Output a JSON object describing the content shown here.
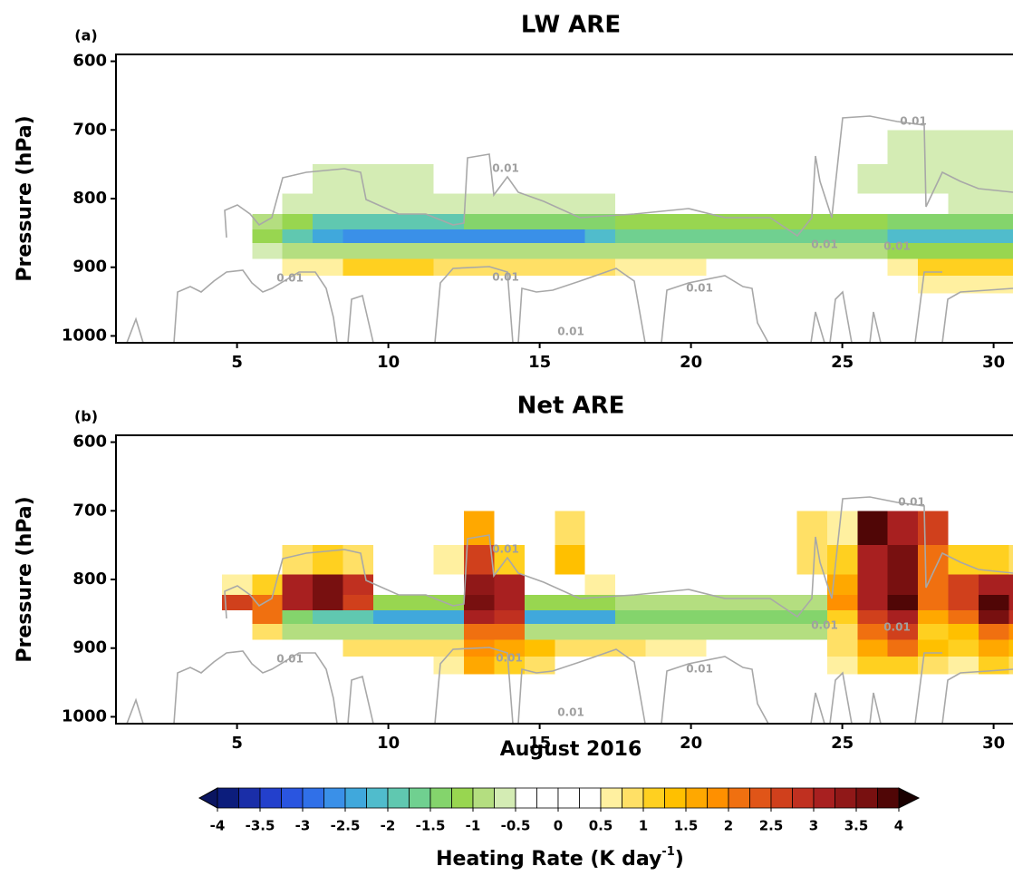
{
  "chart_data": [
    {
      "type": "contour",
      "title": "LW ARE",
      "panel_label": "(a)",
      "ylabel": "Pressure (hPa)",
      "contour_label": "0.01",
      "xlim": [
        1,
        31
      ],
      "xticks": [
        5,
        10,
        15,
        20,
        25,
        30
      ],
      "ylim": [
        1010,
        590
      ],
      "yticks": [
        600,
        700,
        800,
        900,
        1000
      ],
      "x": [
        1,
        2,
        3,
        4,
        5,
        6,
        7,
        8,
        9,
        10,
        11,
        12,
        13,
        14,
        15,
        16,
        17,
        18,
        19,
        20,
        21,
        22,
        23,
        24,
        25,
        26,
        27,
        28,
        29,
        30,
        31
      ],
      "y": [
        725,
        775,
        810,
        835,
        855,
        875,
        900,
        925
      ],
      "z": [
        [
          0,
          0,
          0,
          0,
          0,
          0,
          0,
          0,
          0,
          0,
          0,
          0,
          0,
          0,
          0,
          0,
          0,
          0,
          0,
          0,
          0,
          0,
          0,
          0,
          0,
          0,
          -0.6,
          -0.6,
          -0.6,
          -0.6,
          -0.6
        ],
        [
          0,
          0,
          0,
          0,
          0,
          0,
          0,
          -0.6,
          -0.6,
          -0.6,
          -0.6,
          0,
          0,
          0,
          0,
          0,
          0,
          0,
          0,
          0,
          0,
          0,
          0,
          0,
          0,
          -0.7,
          -0.7,
          -0.7,
          -0.7,
          -0.7,
          -0.7
        ],
        [
          0,
          0,
          0,
          0,
          0,
          0,
          -0.7,
          -0.7,
          -0.7,
          -0.7,
          -0.7,
          -0.7,
          -0.7,
          -0.7,
          -0.7,
          -0.7,
          -0.7,
          0,
          0,
          0,
          0,
          0,
          0,
          0,
          0,
          0,
          0,
          0,
          -0.7,
          -0.7,
          -0.7
        ],
        [
          0,
          0,
          0,
          0,
          0,
          -0.8,
          -1.2,
          -1.8,
          -1.8,
          -1.8,
          -1.8,
          -1.8,
          -1.4,
          -1.4,
          -1.4,
          -1.4,
          -1.4,
          -1.2,
          -1.2,
          -1.2,
          -1.2,
          -1.2,
          -1.2,
          -1.2,
          -1.2,
          -1.2,
          -1.4,
          -1.4,
          -1.4,
          -1.4,
          -1.4
        ],
        [
          0,
          0,
          0,
          0,
          0,
          -1.2,
          -1.8,
          -2.3,
          -2.7,
          -2.7,
          -2.7,
          -2.7,
          -2.7,
          -2.7,
          -2.7,
          -2.7,
          -2.2,
          -1.6,
          -1.6,
          -1.6,
          -1.6,
          -1.6,
          -1.6,
          -1.6,
          -1.6,
          -1.6,
          -2.1,
          -2.1,
          -2.1,
          -2.1,
          -2.1
        ],
        [
          0,
          0,
          0,
          0,
          0,
          -0.7,
          -1,
          -1,
          -1,
          -1,
          -1,
          -1,
          -1,
          -1,
          -1,
          -1,
          -1,
          -1,
          -1,
          -1,
          -1,
          -1,
          -1,
          -1,
          -1,
          -1,
          -1.2,
          -1.2,
          -1.2,
          -1.2,
          -1.2
        ],
        [
          0,
          0,
          0,
          0,
          0,
          0,
          0.6,
          0.7,
          1.1,
          1.1,
          1.1,
          0.8,
          0.9,
          0.9,
          0.9,
          0.9,
          0.9,
          0.7,
          0.7,
          0.7,
          0,
          0,
          0,
          0,
          0,
          0,
          0.6,
          1.2,
          1.2,
          1.2,
          1.2
        ],
        [
          0,
          0,
          0,
          0,
          0,
          0,
          0,
          0,
          0,
          0,
          0,
          0,
          0,
          0,
          0,
          0,
          0,
          0,
          0,
          0,
          0,
          0,
          0,
          0,
          0,
          0,
          0,
          0.7,
          0.7,
          0.7,
          0.7
        ]
      ]
    },
    {
      "type": "contour",
      "title": "Net ARE",
      "panel_label": "(b)",
      "ylabel": "Pressure (hPa)",
      "xlabel": "August 2016",
      "contour_label": "0.01",
      "xlim": [
        1,
        31
      ],
      "xticks": [
        5,
        10,
        15,
        20,
        25,
        30
      ],
      "ylim": [
        1010,
        590
      ],
      "yticks": [
        600,
        700,
        800,
        900,
        1000
      ],
      "x": [
        1,
        2,
        3,
        4,
        5,
        6,
        7,
        8,
        9,
        10,
        11,
        12,
        13,
        14,
        15,
        16,
        17,
        18,
        19,
        20,
        21,
        22,
        23,
        24,
        25,
        26,
        27,
        28,
        29,
        30,
        31
      ],
      "y": [
        725,
        775,
        810,
        835,
        855,
        875,
        900,
        925
      ],
      "z": [
        [
          0,
          0,
          0,
          0,
          0,
          0,
          0,
          0,
          0,
          0,
          0,
          0,
          1.5,
          0,
          0,
          0.8,
          0,
          0,
          0,
          0,
          0,
          0,
          0,
          0.8,
          0.6,
          3.8,
          3.2,
          2.5,
          0,
          0,
          0
        ],
        [
          0,
          0,
          0,
          0,
          0,
          0,
          0.8,
          1.2,
          0.8,
          0,
          0,
          0.6,
          2.5,
          1.2,
          0,
          1.3,
          0,
          0,
          0,
          0,
          0,
          0,
          0,
          0.9,
          1,
          3,
          3.5,
          2,
          1,
          1,
          0.8
        ],
        [
          0,
          0,
          0,
          0,
          0.6,
          1,
          3.2,
          3.6,
          2.8,
          0,
          0,
          0,
          3.4,
          3,
          0,
          0,
          0.7,
          0,
          0,
          0,
          0,
          0,
          0,
          0,
          1.5,
          3,
          3.6,
          2.2,
          2.5,
          3.2,
          3
        ],
        [
          0,
          0,
          0,
          0,
          2.5,
          2,
          3,
          3.5,
          2.5,
          -1.2,
          -1.2,
          -1.2,
          3.5,
          3.2,
          -1.2,
          -1.2,
          -1.2,
          -1,
          -1,
          -1,
          -1,
          -1,
          -1,
          -1,
          1.8,
          3.2,
          3.8,
          2,
          2.6,
          3.8,
          3.2
        ],
        [
          0,
          0,
          0,
          0,
          0,
          2.2,
          -1.5,
          -1.8,
          -2,
          -2.5,
          -2.5,
          -2.5,
          3,
          2.8,
          -2.3,
          -2.3,
          -2.3,
          -1.4,
          -1.4,
          -1.4,
          -1.4,
          -1.4,
          -1.4,
          -1.4,
          1.2,
          2.5,
          3.2,
          1.6,
          2,
          3.6,
          2.8
        ],
        [
          0,
          0,
          0,
          0,
          0,
          0.8,
          -0.9,
          -0.9,
          -0.9,
          -0.9,
          -0.9,
          -0.9,
          2,
          2.2,
          -0.9,
          -0.9,
          -0.9,
          -0.9,
          -0.9,
          -0.9,
          -0.9,
          -0.9,
          -0.9,
          -0.9,
          0.9,
          2,
          2.6,
          1.2,
          1.4,
          2.2,
          1.8
        ],
        [
          0,
          0,
          0,
          0,
          0,
          0,
          0,
          0,
          0.9,
          0.9,
          0.9,
          0.8,
          1.8,
          1.6,
          1.3,
          0.8,
          0.8,
          0.8,
          0.6,
          0.6,
          0,
          0,
          0,
          0,
          0.8,
          1.5,
          2,
          1.4,
          1.2,
          1.6,
          1.4
        ],
        [
          0,
          0,
          0,
          0,
          0,
          0,
          0,
          0,
          0,
          0,
          0,
          0.7,
          1.5,
          1.2,
          0.8,
          0,
          0,
          0,
          0,
          0,
          0,
          0,
          0,
          0,
          0.6,
          1,
          1.2,
          0.9,
          0.7,
          1,
          0.8
        ]
      ]
    }
  ],
  "colorbar": {
    "label": "Heating Rate (K day",
    "label_sup": "-1",
    "label_end": ")",
    "clim": [
      -4,
      4
    ],
    "ticks": [
      -4,
      -3.5,
      -3,
      -2.5,
      -2,
      -1.5,
      -1,
      -0.5,
      0,
      0.5,
      1,
      1.5,
      2,
      2.5,
      3,
      3.5,
      4
    ],
    "under_color": "#0a1560",
    "over_color": "#1a0000",
    "colors": [
      "#0c1d7c",
      "#1a2ea8",
      "#2340cc",
      "#2a55e0",
      "#3070e8",
      "#3a90e8",
      "#40a8dc",
      "#50bccc",
      "#60c8b0",
      "#70d090",
      "#84d46c",
      "#98d650",
      "#b4de80",
      "#d4ecb4",
      "#ffffff",
      "#ffffff",
      "#ffffff",
      "#ffffff",
      "#fff0a0",
      "#ffe066",
      "#ffd020",
      "#ffc000",
      "#ffa800",
      "#ff9000",
      "#f07010",
      "#e05518",
      "#d0401c",
      "#c03020",
      "#a82020",
      "#901818",
      "#781010",
      "#500606"
    ]
  }
}
